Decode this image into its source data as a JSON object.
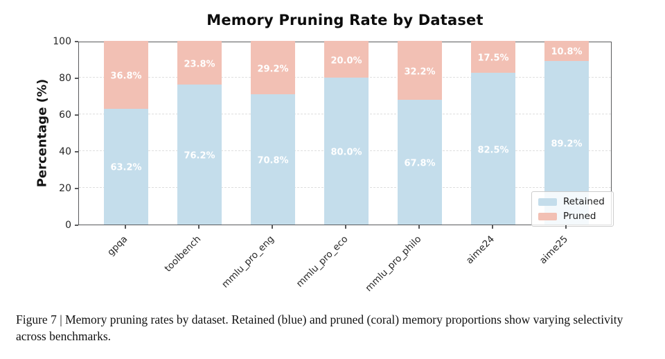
{
  "figure": {
    "title": "Memory Pruning Rate by Dataset",
    "y_axis_label": "Percentage (%)",
    "caption": "Figure 7 | Memory pruning rates by dataset. Retained (blue) and pruned (coral) memory proportions show varying selectivity across benchmarks."
  },
  "chart_data": {
    "type": "bar",
    "stacked": true,
    "title": "Memory Pruning Rate by Dataset",
    "xlabel": "",
    "ylabel": "Percentage (%)",
    "ylim": [
      0,
      100
    ],
    "yticks": [
      0,
      20,
      40,
      60,
      80,
      100
    ],
    "grid": "horizontal-dashed",
    "legend_position": "lower-right",
    "categories": [
      "gpqa",
      "toolbench",
      "mmlu_pro_eng",
      "mmlu_pro_eco",
      "mmlu_pro_philo",
      "aime24",
      "aime25"
    ],
    "series": [
      {
        "name": "Retained",
        "color": "#c4ddeb",
        "values": [
          63.2,
          76.2,
          70.8,
          80.0,
          67.8,
          82.5,
          89.2
        ],
        "value_labels": [
          "63.2%",
          "76.2%",
          "70.8%",
          "80.0%",
          "67.8%",
          "82.5%",
          "89.2%"
        ]
      },
      {
        "name": "Pruned",
        "color": "#f2c0b4",
        "values": [
          36.8,
          23.8,
          29.2,
          20.0,
          32.2,
          17.5,
          10.8
        ],
        "value_labels": [
          "36.8%",
          "23.8%",
          "29.2%",
          "20.0%",
          "32.2%",
          "17.5%",
          "10.8%"
        ]
      }
    ]
  },
  "legend": {
    "items": [
      {
        "label": "Retained",
        "color": "#c4ddeb"
      },
      {
        "label": "Pruned",
        "color": "#f2c0b4"
      }
    ]
  },
  "colors": {
    "retained": "#c4ddeb",
    "pruned": "#f2c0b4",
    "spine": "#58595b",
    "grid": "#dedede",
    "bar_label_text": "#ffffff"
  }
}
